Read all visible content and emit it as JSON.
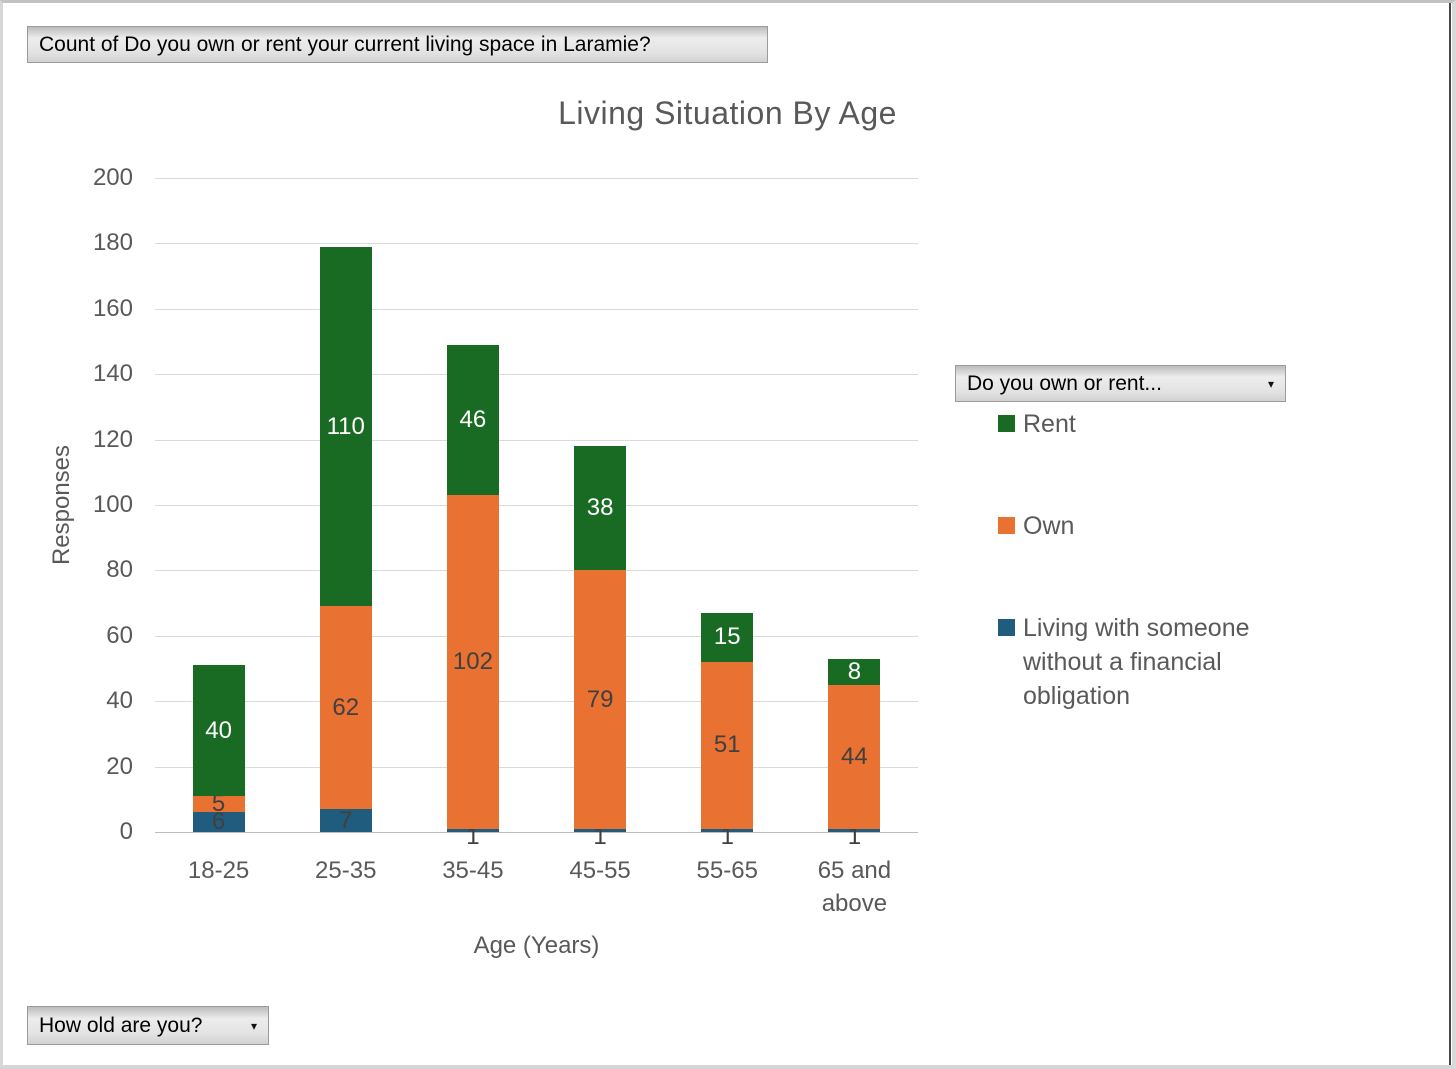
{
  "pivot_buttons": {
    "values_field": "Count of Do you own or rent your current living space in Laramie?",
    "legend_field": "Do you own or rent...",
    "axis_field": "How old are you?",
    "dropdown_arrow": "▾"
  },
  "chart_data": {
    "type": "bar",
    "stacked": true,
    "title": "Living Situation By Age",
    "xlabel": "Age (Years)",
    "ylabel": "Responses",
    "ylim": [
      0,
      200
    ],
    "ytick_step": 20,
    "grid": true,
    "legend_position": "right",
    "categories": [
      "18-25",
      "25-35",
      "35-45",
      "45-55",
      "55-65",
      "65 and above"
    ],
    "series": [
      {
        "name": "Living with someone without a financial obligation",
        "color": "#1F5C7D",
        "label_color": "#404040",
        "values": [
          6,
          7,
          1,
          1,
          1,
          1
        ]
      },
      {
        "name": "Own",
        "color": "#E97132",
        "label_color": "#404040",
        "values": [
          5,
          62,
          102,
          79,
          51,
          44
        ]
      },
      {
        "name": "Rent",
        "color": "#196B24",
        "label_color": "#FFFFFF",
        "values": [
          40,
          110,
          46,
          38,
          15,
          8
        ]
      }
    ],
    "legend_order": [
      "Rent",
      "Own",
      "Living with someone without a financial obligation"
    ]
  },
  "style_colors": {
    "axis_text": "#595959",
    "gridline": "#D9D9D9",
    "axis_line": "#BDBDBD",
    "title_text": "#595959"
  }
}
